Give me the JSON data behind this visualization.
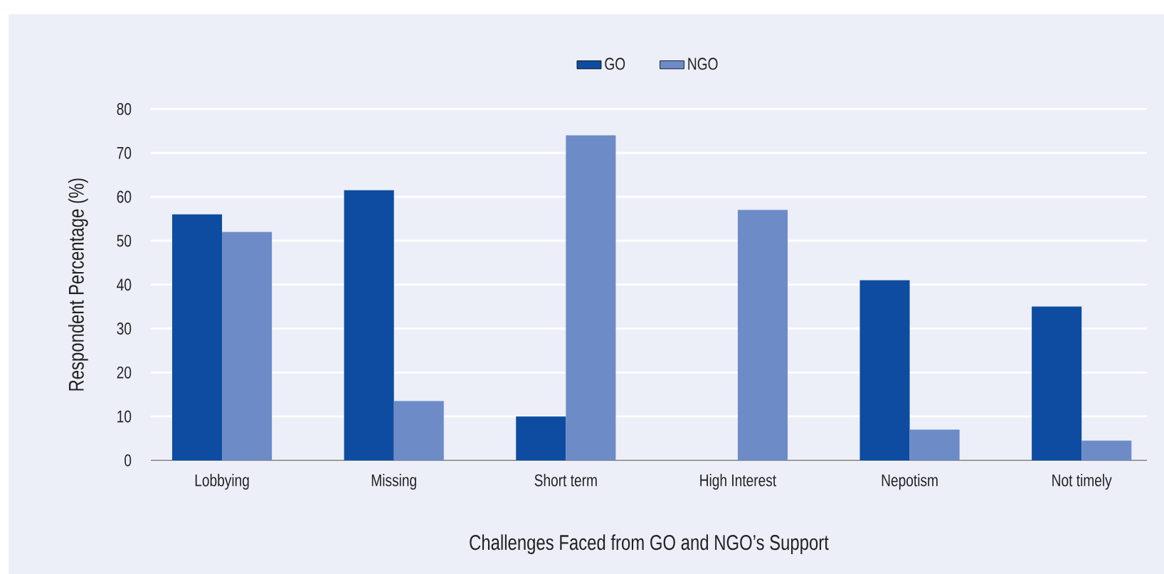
{
  "chart_data": {
    "type": "bar",
    "xlabel": "Challenges Faced from GO and NGO’s Support",
    "ylabel": "Respondent Percentage (%)",
    "categories": [
      "Lobbying",
      "Missing",
      "Short term",
      "High Interest",
      "Nepotism",
      "Not timely"
    ],
    "series": [
      {
        "name": "GO",
        "color": "#0d4ca0",
        "values": [
          56,
          61.5,
          10,
          null,
          41,
          35
        ]
      },
      {
        "name": "NGO",
        "color": "#6d8bc7",
        "values": [
          52,
          13.5,
          74,
          57,
          7,
          4.5
        ]
      }
    ],
    "ylim": [
      0,
      80
    ],
    "yticks": [
      0,
      10,
      20,
      30,
      40,
      50,
      60,
      70,
      80
    ],
    "grid": "y",
    "legend": "top"
  }
}
